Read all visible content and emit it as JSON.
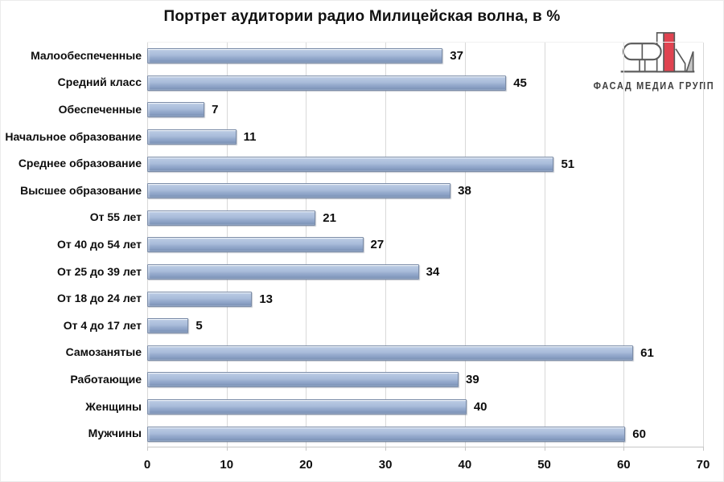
{
  "title": "Портрет аудитории радио Милицейская волна, в %",
  "logo": {
    "text": "ФАСАД МЕДИА ГРУПП",
    "accent_color": "#e04350",
    "metal_color": "#c4c4c4",
    "outline_color": "#5a5a5a"
  },
  "chart_data": {
    "type": "bar",
    "orientation": "horizontal",
    "title": "Портрет аудитории радио Милицейская волна, в %",
    "categories": [
      "Малообеспеченные",
      "Средний класс",
      "Обеспеченные",
      "Начальное образование",
      "Среднее образование",
      "Высшее образование",
      "От 55 лет",
      "От 40 до 54 лет",
      "От 25 до 39 лет",
      "От 18 до 24 лет",
      "От 4 до 17 лет",
      "Самозанятые",
      "Работающие",
      "Женщины",
      "Мужчины"
    ],
    "values": [
      37,
      45,
      7,
      11,
      51,
      38,
      21,
      27,
      34,
      13,
      5,
      61,
      39,
      40,
      60
    ],
    "xlabel": "",
    "ylabel": "",
    "xlim": [
      0,
      70
    ],
    "x_ticks": [
      0,
      10,
      20,
      30,
      40,
      50,
      60,
      70
    ],
    "grid": "vertical",
    "unit": "%",
    "data_labels": true,
    "bar_color": "#a9bcda",
    "bar_border_color": "#7b8ca8",
    "gridline_color": "#d9d9d9"
  }
}
